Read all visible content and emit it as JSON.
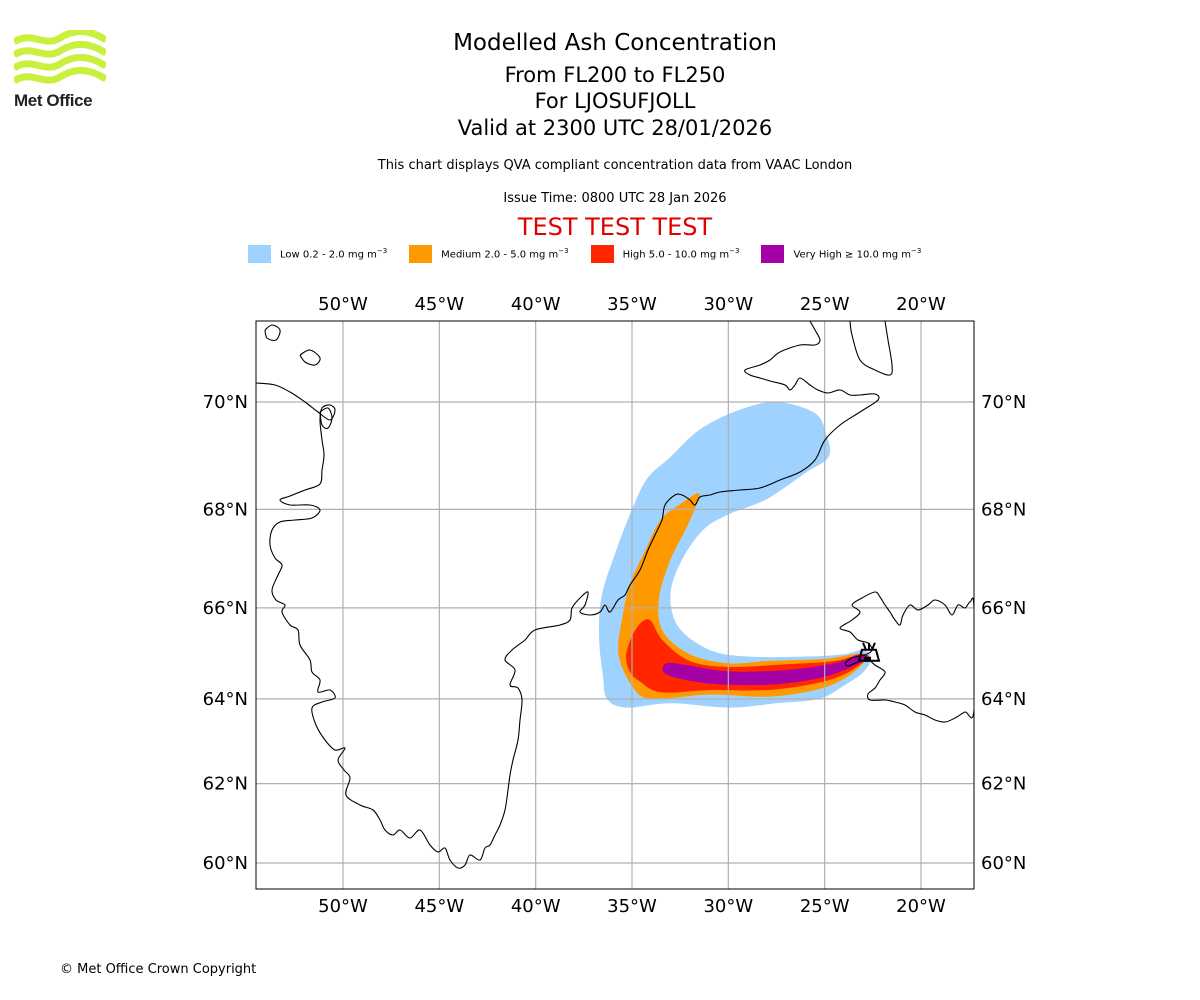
{
  "branding": {
    "logo_name": "Met Office",
    "logo_color": "#c8f03c",
    "copyright": "© Met Office Crown Copyright"
  },
  "header": {
    "title": "Modelled Ash Concentration",
    "flight_levels": "From FL200 to FL250",
    "volcano": "For LJOSUFJOLL",
    "valid_time": "Valid at 2300 UTC 28/01/2026",
    "description": "This chart displays QVA compliant concentration data from VAAC London",
    "issue_time": "Issue Time: 0800 UTC 28 Jan 2026",
    "test_banner": "TEST TEST TEST",
    "test_banner_color": "#e00000"
  },
  "legend": [
    {
      "label": "Low 0.2 - 2.0 mg m",
      "sup": "−3",
      "color": "#a0d2ff"
    },
    {
      "label": "Medium 2.0 - 5.0 mg m",
      "sup": "−3",
      "color": "#ff9900"
    },
    {
      "label": "High 5.0 - 10.0 mg m",
      "sup": "−3",
      "color": "#ff2600"
    },
    {
      "label": "Very High ≥ 10.0 mg m",
      "sup": "−3",
      "color": "#a500a5"
    }
  ],
  "chart_data": {
    "type": "map",
    "title": "Modelled Ash Concentration",
    "projection": "mercator",
    "extent": {
      "lon": [
        -54.5,
        -17.3
      ],
      "lat": [
        59.5,
        71.4
      ]
    },
    "lon_ticks": [
      -50,
      -45,
      -40,
      -35,
      -30,
      -25,
      -20
    ],
    "lon_tick_labels": [
      "50°W",
      "45°W",
      "40°W",
      "35°W",
      "30°W",
      "25°W",
      "20°W"
    ],
    "lat_ticks": [
      70,
      68,
      66,
      64,
      62,
      60
    ],
    "lat_tick_labels": [
      "70°N",
      "68°N",
      "66°N",
      "64°N",
      "62°N",
      "60°N"
    ],
    "grid": true,
    "source_location": {
      "name": "LJOSUFJOLL",
      "lon": -22.7,
      "lat": 64.9
    },
    "ash_levels": [
      {
        "level": "Low",
        "range_mg_m3": [
          0.2,
          2.0
        ],
        "color": "#a0d2ff",
        "polygon": [
          [
            -36.3,
            64.0
          ],
          [
            -35.3,
            63.8
          ],
          [
            -33.0,
            63.9
          ],
          [
            -30.0,
            63.8
          ],
          [
            -27.5,
            63.9
          ],
          [
            -25.3,
            64.0
          ],
          [
            -24.0,
            64.3
          ],
          [
            -23.0,
            64.6
          ],
          [
            -22.6,
            64.9
          ],
          [
            -23.0,
            65.1
          ],
          [
            -24.0,
            65.0
          ],
          [
            -26.0,
            64.95
          ],
          [
            -29.0,
            64.95
          ],
          [
            -31.0,
            65.1
          ],
          [
            -32.6,
            65.6
          ],
          [
            -33.0,
            66.3
          ],
          [
            -32.4,
            67.0
          ],
          [
            -31.3,
            67.6
          ],
          [
            -30.0,
            67.9
          ],
          [
            -28.0,
            68.2
          ],
          [
            -26.0,
            68.7
          ],
          [
            -24.8,
            69.0
          ],
          [
            -24.9,
            69.4
          ],
          [
            -25.5,
            69.8
          ],
          [
            -27.5,
            70.0
          ],
          [
            -29.5,
            69.85
          ],
          [
            -31.5,
            69.5
          ],
          [
            -33.0,
            69.0
          ],
          [
            -34.2,
            68.6
          ],
          [
            -35.0,
            68.0
          ],
          [
            -35.9,
            67.1
          ],
          [
            -36.6,
            66.2
          ],
          [
            -36.7,
            65.3
          ],
          [
            -36.5,
            64.5
          ]
        ]
      },
      {
        "level": "Medium",
        "range_mg_m3": [
          2.0,
          5.0
        ],
        "color": "#ff9900",
        "polygon": [
          [
            -35.0,
            64.3
          ],
          [
            -34.0,
            64.0
          ],
          [
            -31.0,
            64.1
          ],
          [
            -28.0,
            64.05
          ],
          [
            -25.5,
            64.2
          ],
          [
            -24.0,
            64.45
          ],
          [
            -23.0,
            64.8
          ],
          [
            -22.9,
            65.0
          ],
          [
            -23.5,
            65.0
          ],
          [
            -25.0,
            64.9
          ],
          [
            -28.0,
            64.85
          ],
          [
            -30.0,
            64.8
          ],
          [
            -32.0,
            65.0
          ],
          [
            -33.4,
            65.5
          ],
          [
            -33.6,
            66.2
          ],
          [
            -33.0,
            67.0
          ],
          [
            -32.1,
            67.7
          ],
          [
            -31.5,
            68.3
          ],
          [
            -32.5,
            68.1
          ],
          [
            -33.5,
            67.8
          ],
          [
            -34.3,
            67.2
          ],
          [
            -35.1,
            66.5
          ],
          [
            -35.5,
            65.8
          ],
          [
            -35.7,
            65.0
          ]
        ]
      },
      {
        "level": "High",
        "range_mg_m3": [
          5.0,
          10.0
        ],
        "color": "#ff2600",
        "polygon": [
          [
            -34.6,
            64.4
          ],
          [
            -33.5,
            64.15
          ],
          [
            -31.0,
            64.2
          ],
          [
            -28.0,
            64.2
          ],
          [
            -25.5,
            64.35
          ],
          [
            -24.0,
            64.55
          ],
          [
            -23.0,
            64.82
          ],
          [
            -22.7,
            64.95
          ],
          [
            -23.2,
            65.0
          ],
          [
            -24.5,
            64.85
          ],
          [
            -27.0,
            64.78
          ],
          [
            -30.0,
            64.72
          ],
          [
            -32.0,
            64.85
          ],
          [
            -33.4,
            65.3
          ],
          [
            -34.1,
            65.75
          ],
          [
            -34.8,
            65.55
          ],
          [
            -35.3,
            65.0
          ],
          [
            -35.1,
            64.6
          ]
        ]
      },
      {
        "level": "Very High",
        "range_mg_m3": [
          10.0,
          null
        ],
        "color": "#a500a5",
        "polygon": [
          [
            -33.2,
            64.55
          ],
          [
            -31.0,
            64.35
          ],
          [
            -28.0,
            64.32
          ],
          [
            -25.5,
            64.45
          ],
          [
            -24.0,
            64.65
          ],
          [
            -23.0,
            64.85
          ],
          [
            -22.8,
            64.98
          ],
          [
            -23.3,
            64.98
          ],
          [
            -24.5,
            64.8
          ],
          [
            -27.0,
            64.65
          ],
          [
            -30.0,
            64.62
          ],
          [
            -32.0,
            64.75
          ],
          [
            -33.2,
            64.8
          ]
        ]
      }
    ]
  }
}
